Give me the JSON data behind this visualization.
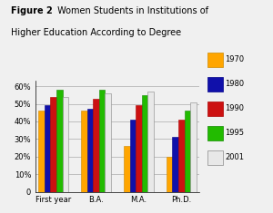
{
  "categories": [
    "First year",
    "B.A.",
    "M.A.",
    "Ph.D."
  ],
  "years": [
    "1970",
    "1980",
    "1990",
    "1995",
    "2001"
  ],
  "colors": [
    "#FFA500",
    "#1010AA",
    "#CC1111",
    "#22BB00",
    "#E8E8E8"
  ],
  "edge_colors": [
    "#CC8800",
    "#000088",
    "#AA0000",
    "#118800",
    "#888888"
  ],
  "data": {
    "First year": [
      46,
      49,
      54,
      58,
      54
    ],
    "B.A.": [
      46,
      47,
      53,
      58,
      56
    ],
    "M.A.": [
      26,
      41,
      49,
      55,
      57
    ],
    "Ph.D.": [
      20,
      31,
      41,
      46,
      51
    ]
  },
  "ylim": [
    0,
    63
  ],
  "yticks": [
    0,
    10,
    20,
    30,
    40,
    50,
    60
  ],
  "ytick_labels": [
    "0",
    "10%",
    "20%",
    "30%",
    "40%",
    "50%",
    "60%"
  ],
  "background_color": "#f0f0f0",
  "title_bold": "Figure 2",
  "title_normal": "  Women Students in Institutions of\nHigher Education According to Degree",
  "legend_labels": [
    "1970",
    "1980",
    "1990",
    "1995",
    "2001"
  ]
}
